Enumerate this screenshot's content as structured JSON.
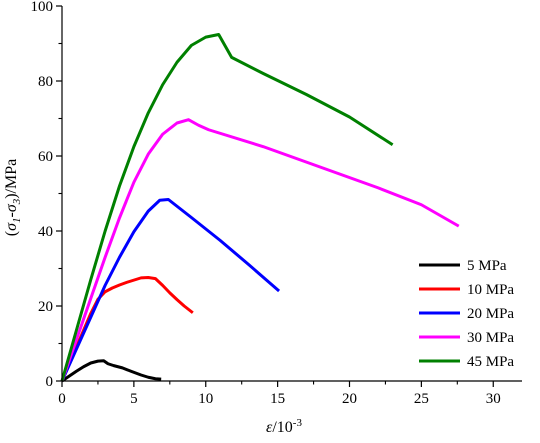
{
  "chart_data": {
    "type": "line",
    "title": "",
    "xlabel": {
      "base": "ε",
      "unit": "/10",
      "exp": "-3"
    },
    "ylabel": {
      "prefix": "(",
      "s1": "σ",
      "s1sub": "1",
      "dash": "-",
      "s3": "σ",
      "s3sub": "3",
      "suffix": ")/MPa"
    },
    "xlim": [
      0,
      32
    ],
    "ylim": [
      0,
      100
    ],
    "xticks": [
      0,
      5,
      10,
      15,
      20,
      25,
      30
    ],
    "yticks": [
      0,
      20,
      40,
      60,
      80,
      100
    ],
    "grid": false,
    "legend_position": "bottom-right",
    "series": [
      {
        "name": "5 MPa",
        "color": "#000000",
        "points": [
          [
            0,
            0
          ],
          [
            0.5,
            1.3
          ],
          [
            1.0,
            2.6
          ],
          [
            1.5,
            3.8
          ],
          [
            2.0,
            4.8
          ],
          [
            2.5,
            5.3
          ],
          [
            2.9,
            5.4
          ],
          [
            3.2,
            4.6
          ],
          [
            3.6,
            4.1
          ],
          [
            4.2,
            3.5
          ],
          [
            4.8,
            2.6
          ],
          [
            5.5,
            1.6
          ],
          [
            6.0,
            1.0
          ],
          [
            6.5,
            0.6
          ],
          [
            6.9,
            0.5
          ]
        ]
      },
      {
        "name": "10 MPa",
        "color": "#ff0000",
        "points": [
          [
            0,
            0
          ],
          [
            0.5,
            4.5
          ],
          [
            1.0,
            9.0
          ],
          [
            1.5,
            13.5
          ],
          [
            2.0,
            18.0
          ],
          [
            2.5,
            21.8
          ],
          [
            3.0,
            23.8
          ],
          [
            3.5,
            24.8
          ],
          [
            4.0,
            25.6
          ],
          [
            4.5,
            26.3
          ],
          [
            5.0,
            26.9
          ],
          [
            5.5,
            27.5
          ],
          [
            6.0,
            27.6
          ],
          [
            6.5,
            27.3
          ],
          [
            7.0,
            25.5
          ],
          [
            7.5,
            23.5
          ],
          [
            8.0,
            21.7
          ],
          [
            8.5,
            20.0
          ],
          [
            9.1,
            18.2
          ]
        ]
      },
      {
        "name": "20 MPa",
        "color": "#0000ff",
        "points": [
          [
            0,
            0
          ],
          [
            1.0,
            8.5
          ],
          [
            2.0,
            17.0
          ],
          [
            3.0,
            25.5
          ],
          [
            4.0,
            33.0
          ],
          [
            5.0,
            39.8
          ],
          [
            6.0,
            45.3
          ],
          [
            6.8,
            48.2
          ],
          [
            7.4,
            48.4
          ],
          [
            9.0,
            43.6
          ],
          [
            11.0,
            37.5
          ],
          [
            13.0,
            31.0
          ],
          [
            15.1,
            24.0
          ]
        ]
      },
      {
        "name": "30 MPa",
        "color": "#ff00ff",
        "points": [
          [
            0,
            0
          ],
          [
            1.0,
            11.0
          ],
          [
            2.0,
            22.0
          ],
          [
            3.0,
            33.0
          ],
          [
            4.0,
            43.5
          ],
          [
            5.0,
            53.0
          ],
          [
            6.0,
            60.5
          ],
          [
            7.0,
            65.8
          ],
          [
            8.0,
            68.8
          ],
          [
            8.8,
            69.7
          ],
          [
            9.5,
            68.2
          ],
          [
            10.2,
            67.0
          ],
          [
            14.0,
            62.5
          ],
          [
            18.0,
            57.0
          ],
          [
            22.0,
            51.5
          ],
          [
            25.0,
            47.0
          ],
          [
            27.6,
            41.3
          ]
        ]
      },
      {
        "name": "45 MPa",
        "color": "#008000",
        "points": [
          [
            0,
            0
          ],
          [
            1.0,
            13.5
          ],
          [
            2.0,
            27.0
          ],
          [
            3.0,
            40.0
          ],
          [
            4.0,
            52.0
          ],
          [
            5.0,
            62.5
          ],
          [
            6.0,
            71.5
          ],
          [
            7.0,
            79.0
          ],
          [
            8.0,
            85.0
          ],
          [
            9.0,
            89.5
          ],
          [
            10.0,
            91.7
          ],
          [
            10.9,
            92.4
          ],
          [
            11.8,
            86.3
          ],
          [
            14.0,
            82.0
          ],
          [
            17.0,
            76.4
          ],
          [
            20.0,
            70.4
          ],
          [
            23.0,
            63.0
          ]
        ]
      }
    ]
  }
}
